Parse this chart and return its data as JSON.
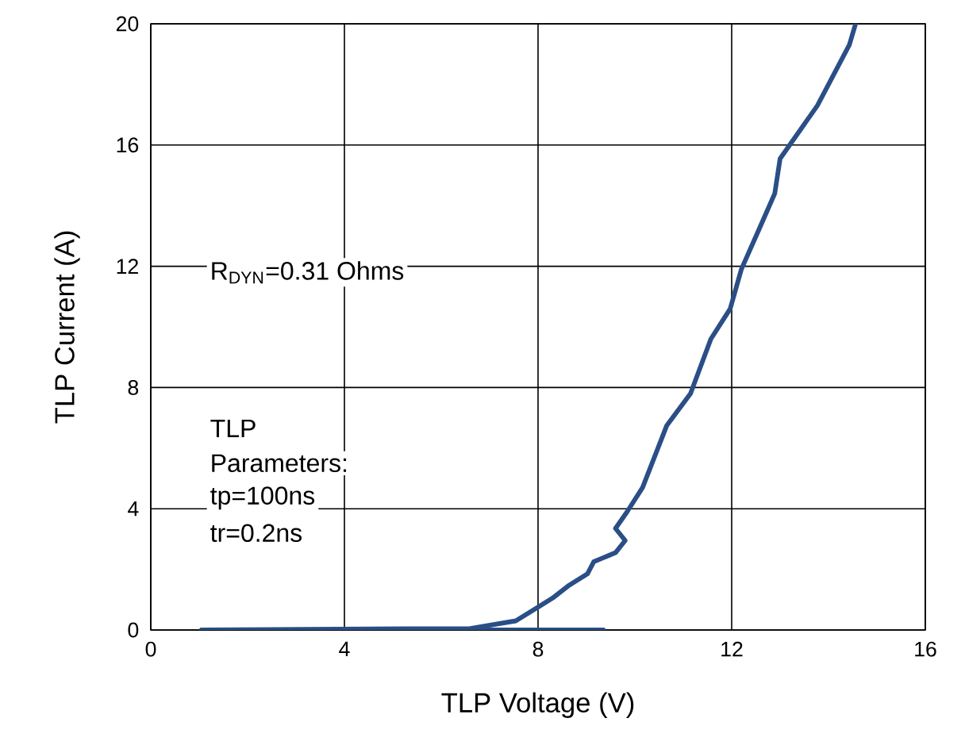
{
  "chart_data": {
    "type": "line",
    "xlabel": "TLP Voltage (V)",
    "ylabel": "TLP Current (A)",
    "xlim": [
      0,
      16
    ],
    "ylim": [
      0,
      20
    ],
    "xticks": [
      0,
      4,
      8,
      12,
      16
    ],
    "yticks": [
      0,
      4,
      8,
      12,
      16,
      20
    ],
    "grid": true,
    "marker": "none",
    "line_style": "solid",
    "annotations": [
      "R$_{DYN}$=0.31 Ohms",
      "TLP",
      "Parameters:",
      "tp=100ns",
      "tr=0.2ns"
    ],
    "series": [
      {
        "color": "#2a4e86",
        "x": [
          1.05,
          9.35
        ],
        "values": [
          0,
          0
        ]
      },
      {
        "color": "#2a4e86",
        "x": [
          1.05,
          6.6,
          7.54,
          8.3,
          8.62,
          9.02,
          9.15,
          9.6,
          9.8,
          9.6,
          9.84,
          10.16,
          10.66,
          11.15,
          11.57,
          11.97,
          12.2,
          12.56,
          12.89,
          13.0,
          13.77,
          14.43,
          14.56
        ],
        "values": [
          0,
          0.05,
          0.3,
          1.05,
          1.45,
          1.85,
          2.25,
          2.55,
          2.95,
          3.35,
          3.9,
          4.7,
          6.75,
          7.8,
          9.6,
          10.6,
          11.9,
          13.2,
          14.4,
          15.55,
          17.3,
          19.3,
          20
        ]
      }
    ]
  }
}
